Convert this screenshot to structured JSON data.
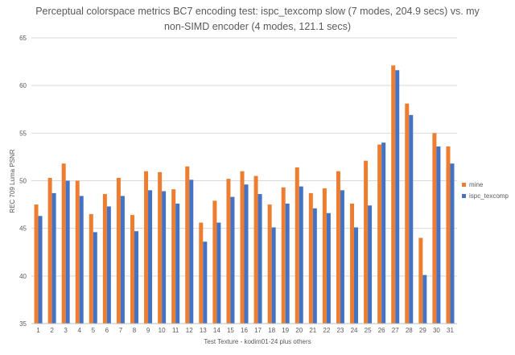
{
  "chart_data": {
    "type": "bar",
    "title_line1": "Perceptual colorspace metrics BC7 encoding test: ispc_texcomp slow (7 modes, 204.9 secs) vs. my",
    "title_line2": "non-SIMD encoder (4 modes, 121.1 secs)",
    "xlabel": "Test Texture - kodim01-24 plus others",
    "ylabel": "REC 709 Luma PSNR",
    "ylim": [
      35,
      65
    ],
    "yticks": [
      35,
      40,
      45,
      50,
      55,
      60,
      65
    ],
    "grid": true,
    "legend_position": "right",
    "categories": [
      "1",
      "2",
      "3",
      "4",
      "5",
      "6",
      "7",
      "8",
      "9",
      "10",
      "11",
      "12",
      "13",
      "14",
      "15",
      "16",
      "17",
      "18",
      "19",
      "20",
      "21",
      "22",
      "23",
      "24",
      "25",
      "26",
      "27",
      "28",
      "29",
      "30",
      "31"
    ],
    "series": [
      {
        "name": "mine",
        "color": "#ED7D31",
        "values": [
          47.5,
          50.3,
          51.8,
          50.0,
          46.5,
          48.6,
          50.3,
          46.4,
          51.0,
          50.9,
          49.1,
          51.5,
          45.6,
          47.9,
          50.2,
          51.0,
          50.5,
          47.5,
          49.3,
          51.4,
          48.7,
          49.2,
          51.0,
          47.6,
          52.1,
          53.8,
          62.1,
          58.1,
          44.0,
          55.0,
          53.6
        ]
      },
      {
        "name": "ispc_texcomp",
        "color": "#4472C4",
        "values": [
          46.3,
          48.7,
          50.0,
          48.4,
          44.6,
          47.3,
          48.4,
          44.7,
          49.0,
          48.9,
          47.6,
          50.1,
          43.6,
          45.6,
          48.3,
          49.6,
          48.6,
          45.1,
          47.6,
          49.4,
          47.1,
          46.6,
          49.0,
          45.1,
          47.4,
          54.0,
          61.6,
          56.9,
          40.1,
          53.6,
          51.8
        ]
      }
    ]
  }
}
